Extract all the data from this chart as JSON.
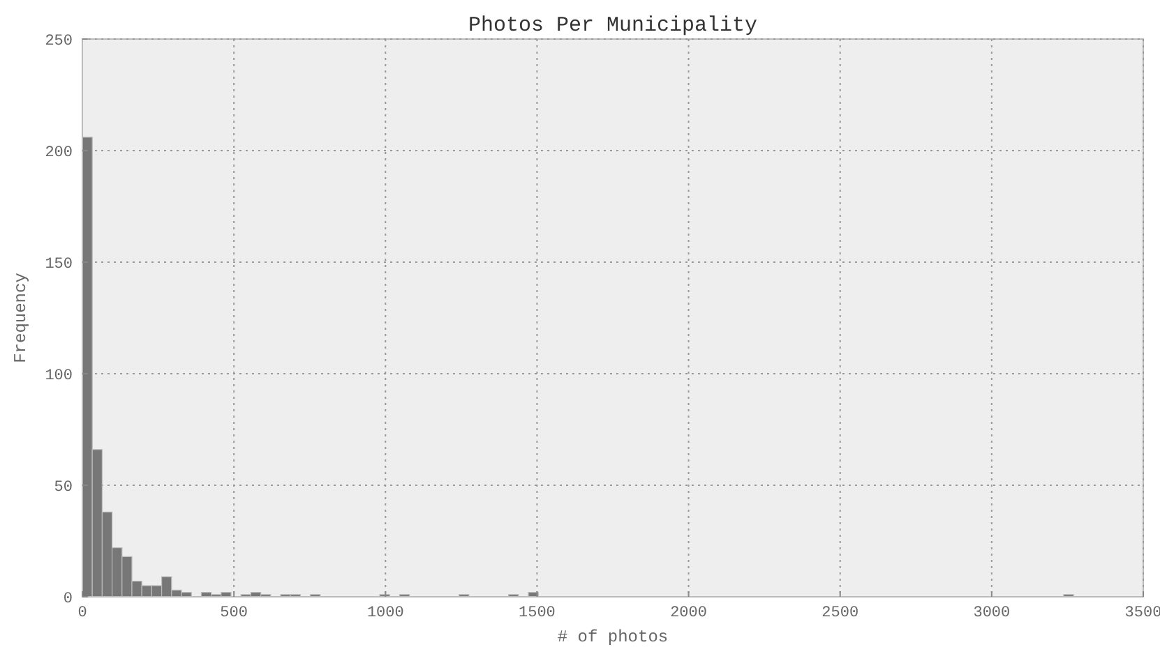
{
  "chart_data": {
    "type": "histogram",
    "title": "Photos Per Municipality",
    "xlabel": "# of photos",
    "ylabel": "Frequency",
    "bins": [
      0,
      32.7,
      65.4,
      98.1,
      130.8,
      163.5,
      196.2,
      228.9,
      261.6,
      294.3,
      327,
      359.7,
      392.4,
      425.1,
      457.8,
      490.5,
      523.2,
      555.9,
      588.6,
      621.3,
      654,
      686.7,
      719.4,
      752.1,
      784.8,
      817.5,
      850.2,
      882.9,
      915.6,
      948.3,
      981,
      1013.7,
      1046.4,
      1079.1,
      1111.8,
      1144.5,
      1177.2,
      1209.9,
      1242.6,
      1275.3,
      1308,
      1340.7,
      1373.4,
      1406.1,
      1438.8,
      1471.5,
      1504.2,
      1536.9,
      1569.6,
      1602.3,
      1635,
      1667.7,
      1700.4,
      1733.1,
      1765.8,
      1798.5,
      1831.2,
      1863.9,
      1896.6,
      1929.3,
      1962,
      1994.7,
      2027.4,
      2060.1,
      2092.8,
      2125.5,
      2158.2,
      2190.9,
      2223.6,
      2256.3,
      2289,
      2321.7,
      2354.4,
      2387.1,
      2419.8,
      2452.5,
      2485.2,
      2517.9,
      2550.6,
      2583.3,
      2616,
      2648.7,
      2681.4,
      2714.1,
      2746.8,
      2779.5,
      2812.2,
      2844.9,
      2877.6,
      2910.3,
      2943,
      2975.7,
      3008.4,
      3041.1,
      3073.8,
      3106.5,
      3139.2,
      3171.9,
      3204.6,
      3237.3,
      3270
    ],
    "values": [
      206,
      66,
      38,
      22,
      18,
      7,
      5,
      5,
      9,
      3,
      2,
      0,
      2,
      1,
      2,
      0,
      1,
      2,
      1,
      0,
      1,
      1,
      0,
      1,
      0,
      0,
      0,
      0,
      0,
      0,
      1,
      0,
      1,
      0,
      0,
      0,
      0,
      0,
      1,
      0,
      0,
      0,
      0,
      1,
      0,
      2,
      0,
      0,
      0,
      0,
      0,
      0,
      0,
      0,
      0,
      0,
      0,
      0,
      0,
      0,
      0,
      0,
      0,
      0,
      0,
      0,
      0,
      0,
      0,
      0,
      0,
      0,
      0,
      0,
      0,
      0,
      0,
      0,
      0,
      0,
      0,
      0,
      0,
      0,
      0,
      0,
      0,
      0,
      0,
      0,
      0,
      0,
      0,
      0,
      0,
      0,
      0,
      0,
      0,
      1
    ],
    "color": "#777777",
    "xlim": [
      0,
      3500
    ],
    "xticks": [
      0,
      500,
      1000,
      1500,
      2000,
      2500,
      3000,
      3500
    ],
    "ylim": [
      0,
      250
    ],
    "yticks": [
      0,
      50,
      100,
      150,
      200,
      250
    ],
    "grid": true
  }
}
